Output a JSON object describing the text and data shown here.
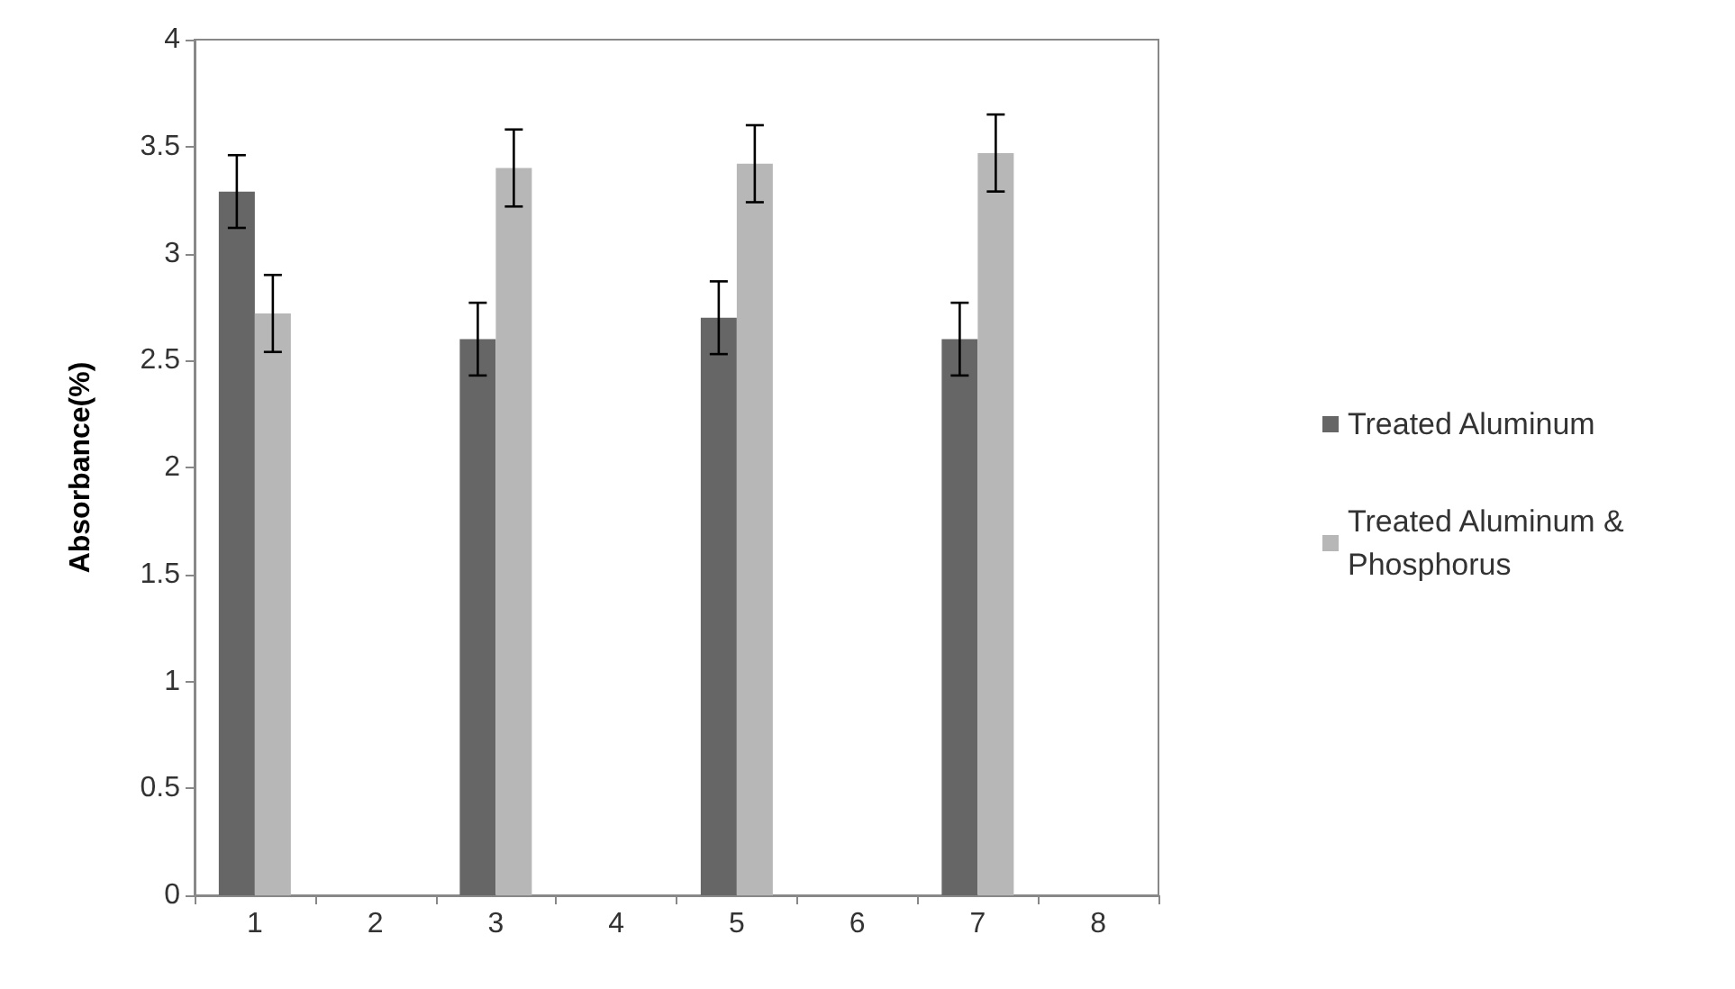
{
  "chart_data": {
    "type": "bar",
    "ylabel": "Absorbance(%)",
    "categories": [
      "1",
      "2",
      "3",
      "4",
      "5",
      "6",
      "7",
      "8"
    ],
    "series": [
      {
        "name": "Treated Aluminum",
        "color": "#666666",
        "values": [
          3.29,
          null,
          2.6,
          null,
          2.7,
          null,
          2.6,
          null
        ],
        "errors": [
          0.17,
          null,
          0.17,
          null,
          0.17,
          null,
          0.17,
          null
        ]
      },
      {
        "name": "Treated Aluminum & Phosphorus",
        "color": "#b7b7b7",
        "values": [
          2.72,
          null,
          3.4,
          null,
          3.42,
          null,
          3.47,
          null
        ],
        "errors": [
          0.18,
          null,
          0.18,
          null,
          0.18,
          null,
          0.18,
          null
        ]
      }
    ],
    "ylim": [
      0,
      4
    ],
    "yticks": [
      0,
      0.5,
      1,
      1.5,
      2,
      2.5,
      3,
      3.5,
      4
    ],
    "grid": false,
    "legend": "right"
  }
}
